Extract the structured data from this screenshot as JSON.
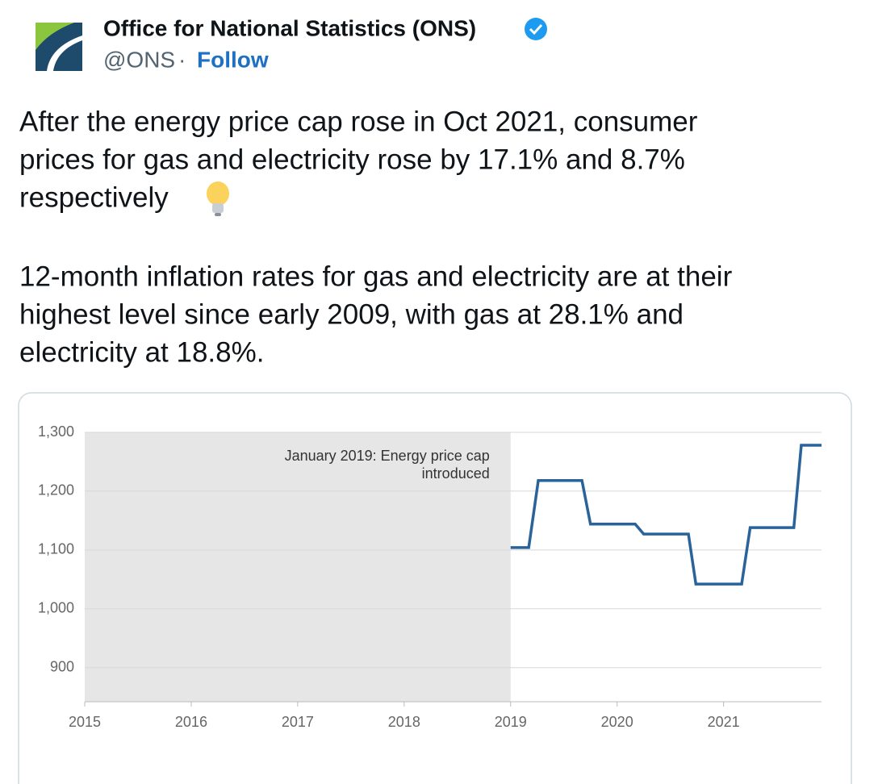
{
  "tweet": {
    "author": {
      "name": "Office for National Statistics (ONS)",
      "handle": "@ONS",
      "separator": "·",
      "follow": "Follow"
    },
    "text": [
      [
        "After the energy price cap rose in Oct 2021, consumer",
        "prices for gas and electricity rose by 17.1% and 8.7%",
        "respectively"
      ],
      [
        "12-month inflation rates for gas and electricity are at their",
        "highest level since early 2009, with gas at 28.1% and",
        "electricity at 18.8%."
      ]
    ]
  },
  "chart_data": {
    "type": "line",
    "x": [
      2019.0,
      2019.17,
      2019.26,
      2019.67,
      2019.75,
      2020.17,
      2020.25,
      2020.67,
      2020.74,
      2021.17,
      2021.25,
      2021.66,
      2021.73,
      2021.92
    ],
    "values": [
      1104,
      1104,
      1218,
      1218,
      1144,
      1144,
      1127,
      1127,
      1042,
      1042,
      1138,
      1138,
      1278,
      1278
    ],
    "color": "#2a6399",
    "xlim": [
      2015,
      2021.92
    ],
    "xticks": [
      2015,
      2016,
      2017,
      2018,
      2019,
      2020,
      2021
    ],
    "ylim": [
      842,
      1300
    ],
    "yticks": [
      900,
      {
        "value": 1000,
        "label": "1,000"
      },
      {
        "value": 1100,
        "label": "1,100"
      },
      {
        "value": 1200,
        "label": "1,200"
      },
      {
        "value": 1300,
        "label": "1,300"
      }
    ],
    "grid": true,
    "shaded_region": [
      2015,
      2019
    ],
    "shade_color": "#e6e6e6",
    "annotation": [
      "January 2019: Energy price cap",
      "introduced"
    ]
  }
}
